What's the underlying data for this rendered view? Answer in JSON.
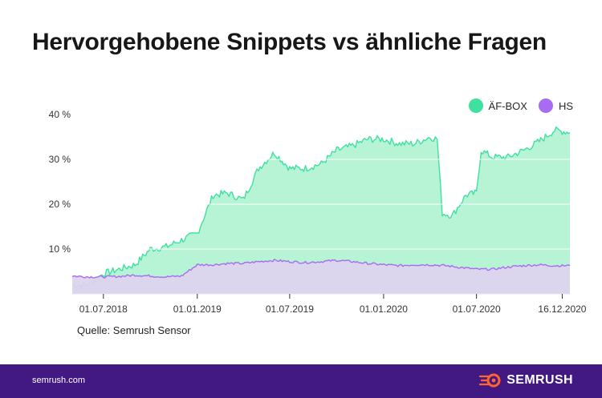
{
  "header": {
    "title": "Hervorgehobene Snippets vs ähnliche Fragen"
  },
  "source_text": "Quelle: Semrush Sensor",
  "footer": {
    "url": "semrush.com",
    "logo_text": "SEMRUSH"
  },
  "colors": {
    "paa": "#3fe0a0",
    "paa_fill": "#b7f4d6",
    "fs": "#a86bf2",
    "fs_fill": "#ddd3ef",
    "footer_bg": "#421983",
    "logo_accent": "#ff642d"
  },
  "chart_data": {
    "type": "area",
    "title": "Hervorgehobene Snippets vs ähnliche Fragen",
    "x_range": [
      "2018-05-01",
      "2020-12-31"
    ],
    "ylim": [
      0,
      40
    ],
    "y_ticks": [
      {
        "value": 10,
        "label": "10 %"
      },
      {
        "value": 20,
        "label": "20 %"
      },
      {
        "value": 30,
        "label": "30 %"
      },
      {
        "value": 40,
        "label": "40 %"
      }
    ],
    "x_ticks": [
      {
        "date": "2018-07-01",
        "label": "01.07.2018"
      },
      {
        "date": "2019-01-01",
        "label": "01.01.2019"
      },
      {
        "date": "2019-07-01",
        "label": "01.07.2019"
      },
      {
        "date": "2020-01-01",
        "label": "01.01.2020"
      },
      {
        "date": "2020-07-01",
        "label": "01.07.2020"
      },
      {
        "date": "2020-12-16",
        "label": "16.12.2020"
      }
    ],
    "grid": true,
    "legend_position": "top-right",
    "series": [
      {
        "name": "ÄF-BOX",
        "points": [
          [
            "2018-05-01",
            2.0
          ],
          [
            "2018-06-01",
            2.0
          ],
          [
            "2018-07-01",
            4.5
          ],
          [
            "2018-08-01",
            5.5
          ],
          [
            "2018-09-01",
            6.5
          ],
          [
            "2018-10-01",
            10.0
          ],
          [
            "2018-11-01",
            10.5
          ],
          [
            "2018-12-01",
            12.0
          ],
          [
            "2019-01-01",
            13.5
          ],
          [
            "2019-02-01",
            22.0
          ],
          [
            "2019-03-01",
            22.5
          ],
          [
            "2019-04-01",
            21.0
          ],
          [
            "2019-05-01",
            28.0
          ],
          [
            "2019-06-01",
            31.5
          ],
          [
            "2019-07-01",
            28.0
          ],
          [
            "2019-08-01",
            28.0
          ],
          [
            "2019-09-01",
            29.0
          ],
          [
            "2019-10-01",
            32.0
          ],
          [
            "2019-11-01",
            33.0
          ],
          [
            "2019-12-01",
            34.5
          ],
          [
            "2020-01-01",
            34.5
          ],
          [
            "2020-02-01",
            33.5
          ],
          [
            "2020-03-01",
            33.5
          ],
          [
            "2020-04-01",
            35.0
          ],
          [
            "2020-04-15",
            34.5
          ],
          [
            "2020-04-25",
            18.0
          ],
          [
            "2020-05-15",
            17.5
          ],
          [
            "2020-06-10",
            22.0
          ],
          [
            "2020-07-01",
            22.5
          ],
          [
            "2020-07-10",
            32.0
          ],
          [
            "2020-08-01",
            30.5
          ],
          [
            "2020-09-01",
            30.5
          ],
          [
            "2020-10-01",
            32.0
          ],
          [
            "2020-11-01",
            34.0
          ],
          [
            "2020-12-01",
            36.5
          ],
          [
            "2020-12-31",
            36.0
          ]
        ]
      },
      {
        "name": "HS",
        "points": [
          [
            "2018-05-01",
            4.0
          ],
          [
            "2018-06-01",
            3.8
          ],
          [
            "2018-07-01",
            3.8
          ],
          [
            "2018-08-01",
            3.9
          ],
          [
            "2018-09-01",
            4.2
          ],
          [
            "2018-10-01",
            4.0
          ],
          [
            "2018-11-01",
            3.8
          ],
          [
            "2018-12-01",
            4.0
          ],
          [
            "2019-01-01",
            6.5
          ],
          [
            "2019-02-01",
            6.5
          ],
          [
            "2019-03-01",
            6.8
          ],
          [
            "2019-04-01",
            6.8
          ],
          [
            "2019-05-01",
            7.2
          ],
          [
            "2019-06-01",
            7.5
          ],
          [
            "2019-07-01",
            7.2
          ],
          [
            "2019-08-01",
            7.0
          ],
          [
            "2019-09-01",
            7.2
          ],
          [
            "2019-10-01",
            7.5
          ],
          [
            "2019-11-01",
            7.2
          ],
          [
            "2019-12-01",
            6.8
          ],
          [
            "2020-01-01",
            6.5
          ],
          [
            "2020-02-01",
            6.3
          ],
          [
            "2020-03-01",
            6.5
          ],
          [
            "2020-04-01",
            6.5
          ],
          [
            "2020-05-01",
            6.3
          ],
          [
            "2020-06-01",
            5.9
          ],
          [
            "2020-07-01",
            5.5
          ],
          [
            "2020-08-01",
            5.5
          ],
          [
            "2020-09-01",
            6.0
          ],
          [
            "2020-10-01",
            6.3
          ],
          [
            "2020-11-01",
            6.5
          ],
          [
            "2020-12-01",
            6.3
          ],
          [
            "2020-12-31",
            6.3
          ]
        ]
      }
    ]
  }
}
